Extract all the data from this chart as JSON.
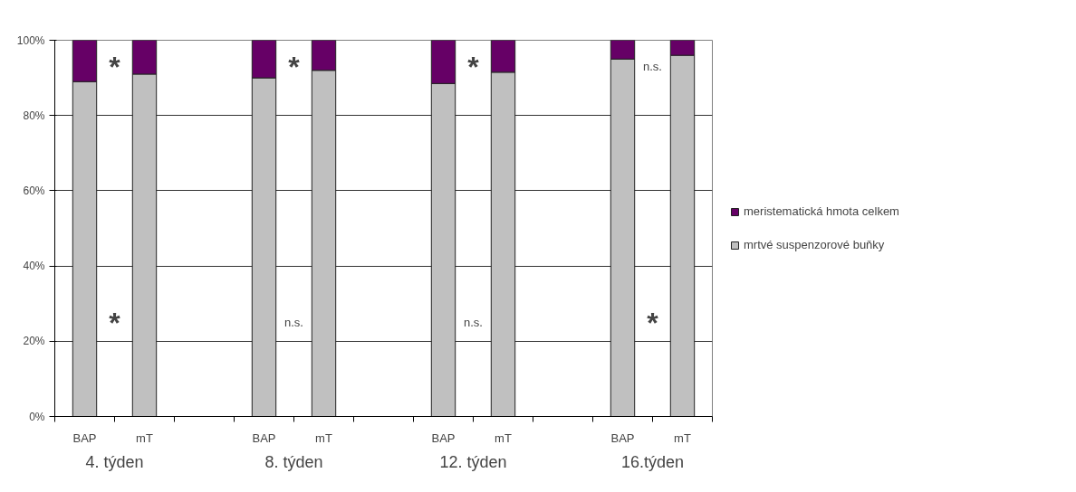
{
  "chart_data": {
    "type": "bar",
    "stacked": true,
    "categories": [
      "BAP",
      "mT",
      null,
      "BAP",
      "mT",
      null,
      "BAP",
      "mT",
      null,
      "BAP",
      "mT"
    ],
    "series": [
      {
        "name": "mrtvé suspenzorové buňky",
        "color": "#c0c0c0",
        "values": [
          89,
          91,
          null,
          90,
          92,
          null,
          88.5,
          91.5,
          null,
          95,
          96
        ]
      },
      {
        "name": "meristematická hmota celkem",
        "color": "#660066",
        "values": [
          11,
          9,
          null,
          10,
          8,
          null,
          11.5,
          8.5,
          null,
          5,
          4
        ]
      }
    ],
    "ylim": [
      0,
      100
    ],
    "yticks": [
      {
        "value": 0,
        "label": "0%"
      },
      {
        "value": 20,
        "label": "20%"
      },
      {
        "value": 40,
        "label": "40%"
      },
      {
        "value": 60,
        "label": "60%"
      },
      {
        "value": 80,
        "label": "80%"
      },
      {
        "value": 100,
        "label": "100%"
      }
    ],
    "grid": "y",
    "legend": "right",
    "annotations": [
      "4. týden",
      "8. týden",
      "12. týden",
      "16.týden",
      "*",
      "*",
      "*",
      "n.s.",
      "*",
      "n.s.",
      "n.s.",
      "*"
    ]
  }
}
